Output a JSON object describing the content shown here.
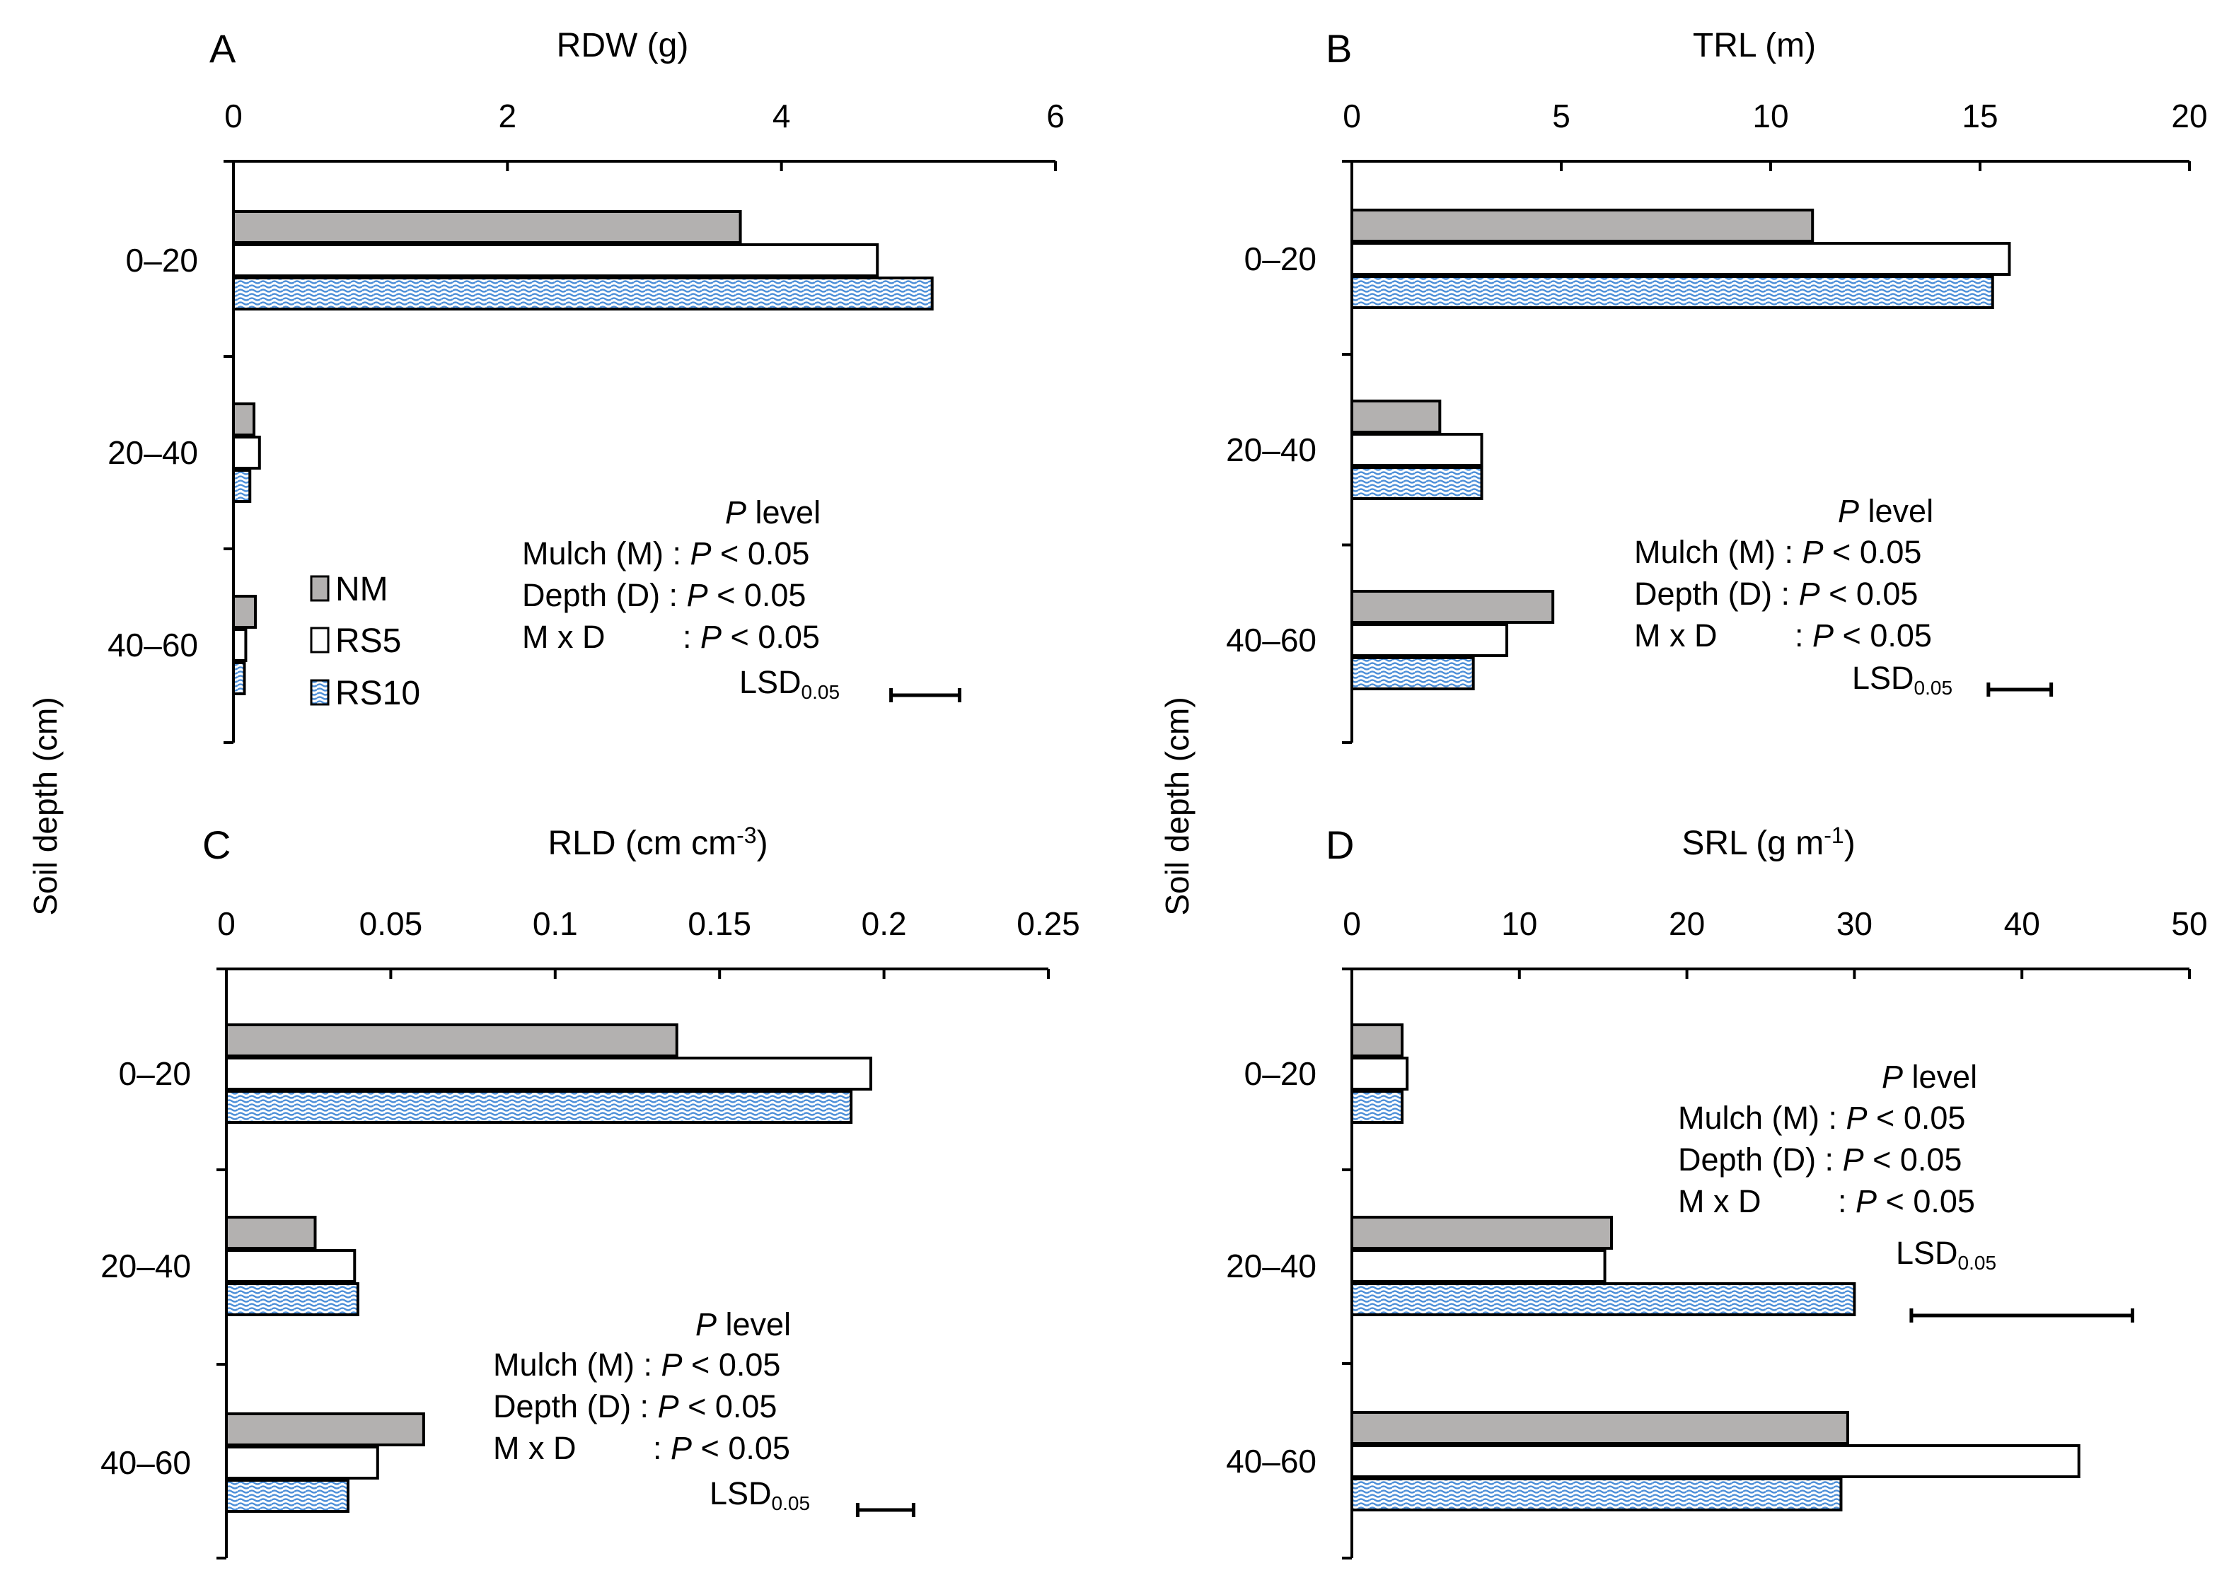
{
  "shared_ylabel": "Soil depth (cm)",
  "legend": [
    {
      "key": "NM",
      "label": "NM"
    },
    {
      "key": "RS5",
      "label": "RS5"
    },
    {
      "key": "RS10",
      "label": "RS10"
    }
  ],
  "colors": {
    "NM": "#b3b1b0",
    "RS5": "#ffffff",
    "RS10_wave": "#4d8fd8",
    "RS10_bg": "#ffffff",
    "axis": "#000000"
  },
  "stats_text": {
    "p_italic": "P",
    "p_level_rest": " level",
    "mulch_prefix": "Mulch (M) : ",
    "depth_prefix": "Depth (D) : ",
    "mxd_prefix": "M x D",
    "mxd_colon": ": ",
    "p_value_rest": " < 0.05",
    "lsd_main": "LSD",
    "lsd_sub": "0.05"
  },
  "chart_data": [
    {
      "panel": "A",
      "type": "bar",
      "orientation": "horizontal",
      "title": "RDW (g)",
      "categories": [
        "0–20",
        "20–40",
        "40–60"
      ],
      "xlim": [
        0,
        6
      ],
      "xticks": [
        "0",
        "2",
        "4",
        "6"
      ],
      "series": [
        {
          "name": "NM",
          "values": [
            3.7,
            0.15,
            0.16
          ]
        },
        {
          "name": "RS5",
          "values": [
            4.7,
            0.19,
            0.09
          ]
        },
        {
          "name": "RS10",
          "values": [
            5.1,
            0.12,
            0.08
          ]
        }
      ],
      "lsd": 0.5,
      "lsd_start": 4.8
    },
    {
      "panel": "B",
      "type": "bar",
      "orientation": "horizontal",
      "title": "TRL (m)",
      "categories": [
        "0–20",
        "20–40",
        "40–60"
      ],
      "xlim": [
        0,
        20
      ],
      "xticks": [
        "0",
        "5",
        "10",
        "15",
        "20"
      ],
      "series": [
        {
          "name": "NM",
          "values": [
            11.0,
            2.1,
            4.8
          ]
        },
        {
          "name": "RS5",
          "values": [
            15.7,
            3.1,
            3.7
          ]
        },
        {
          "name": "RS10",
          "values": [
            15.3,
            3.1,
            2.9
          ]
        }
      ],
      "lsd": 1.5,
      "lsd_start": 15.2
    },
    {
      "panel": "C",
      "type": "bar",
      "orientation": "horizontal",
      "title": "RLD (cm cm-3)",
      "categories": [
        "0–20",
        "20–40",
        "40–60"
      ],
      "xlim": [
        0,
        0.25
      ],
      "xticks": [
        "0",
        "0.05",
        "0.1",
        "0.15",
        "0.2",
        "0.25"
      ],
      "series": [
        {
          "name": "NM",
          "values": [
            0.137,
            0.027,
            0.06
          ]
        },
        {
          "name": "RS5",
          "values": [
            0.196,
            0.039,
            0.046
          ]
        },
        {
          "name": "RS10",
          "values": [
            0.19,
            0.04,
            0.037
          ]
        }
      ],
      "lsd": 0.017,
      "lsd_start": 0.192
    },
    {
      "panel": "D",
      "type": "bar",
      "orientation": "horizontal",
      "title": "SRL (g m-1)",
      "categories": [
        "0–20",
        "20–40",
        "40–60"
      ],
      "xlim": [
        0,
        50
      ],
      "xticks": [
        "0",
        "10",
        "20",
        "30",
        "40",
        "50"
      ],
      "series": [
        {
          "name": "NM",
          "values": [
            3.0,
            15.5,
            29.6
          ]
        },
        {
          "name": "RS5",
          "values": [
            3.3,
            15.1,
            43.4
          ]
        },
        {
          "name": "RS10",
          "values": [
            3.0,
            30.0,
            29.2
          ]
        }
      ],
      "lsd": 13.2,
      "lsd_start": 33.4
    }
  ]
}
